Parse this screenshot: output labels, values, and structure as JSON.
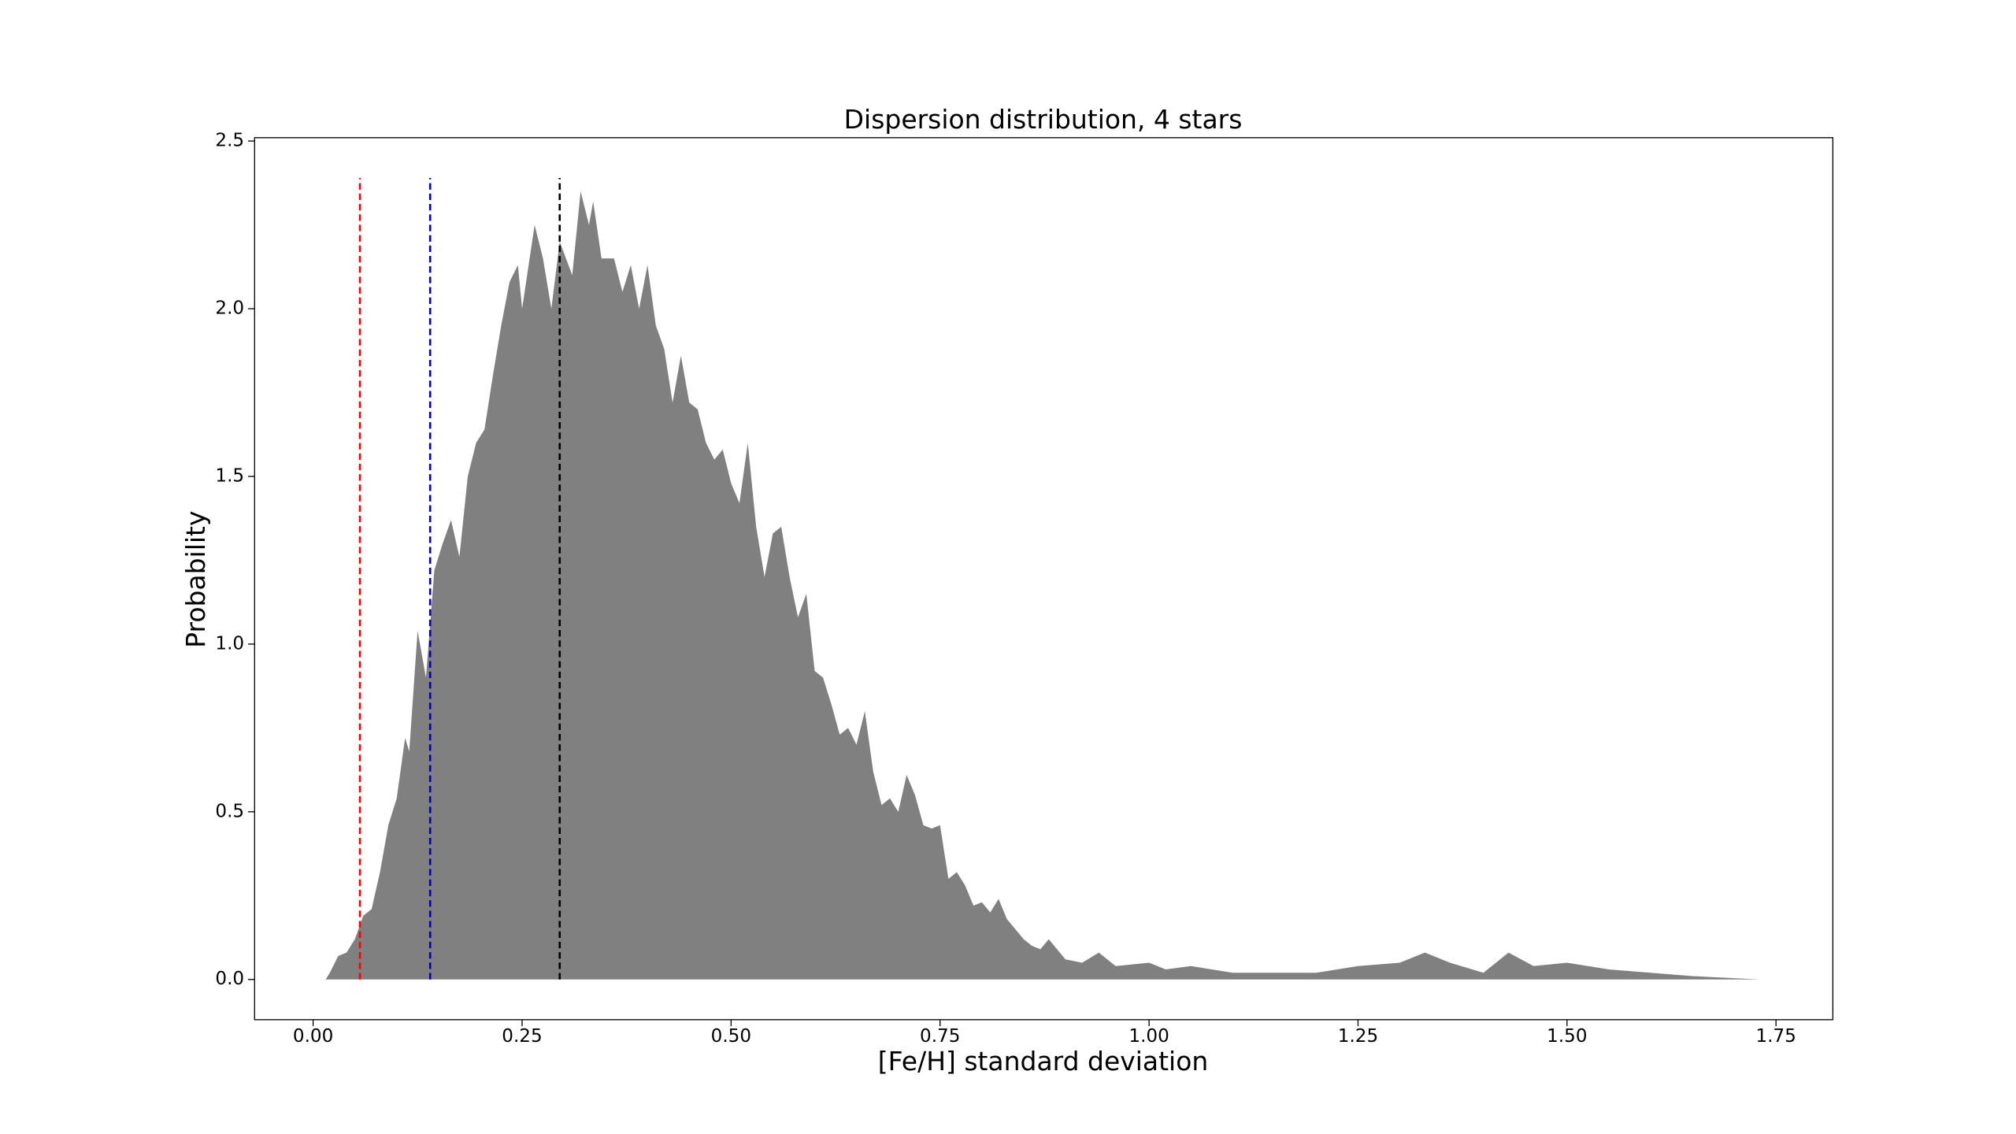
{
  "chart_data": {
    "type": "area",
    "title": "Dispersion distribution, 4 stars",
    "xlabel": "[Fe/H] standard deviation",
    "ylabel": "Probability",
    "color": "#808080",
    "x": [
      0.015,
      0.02,
      0.03,
      0.04,
      0.05,
      0.06,
      0.07,
      0.08,
      0.09,
      0.1,
      0.11,
      0.115,
      0.125,
      0.135,
      0.145,
      0.155,
      0.165,
      0.175,
      0.185,
      0.195,
      0.205,
      0.215,
      0.225,
      0.235,
      0.245,
      0.25,
      0.265,
      0.275,
      0.285,
      0.295,
      0.31,
      0.32,
      0.33,
      0.335,
      0.345,
      0.36,
      0.37,
      0.38,
      0.39,
      0.4,
      0.41,
      0.42,
      0.43,
      0.44,
      0.45,
      0.46,
      0.47,
      0.48,
      0.49,
      0.5,
      0.51,
      0.52,
      0.53,
      0.54,
      0.55,
      0.56,
      0.57,
      0.58,
      0.59,
      0.6,
      0.61,
      0.62,
      0.63,
      0.64,
      0.65,
      0.66,
      0.67,
      0.68,
      0.69,
      0.7,
      0.71,
      0.72,
      0.73,
      0.74,
      0.75,
      0.76,
      0.77,
      0.78,
      0.79,
      0.8,
      0.81,
      0.82,
      0.83,
      0.84,
      0.85,
      0.86,
      0.87,
      0.88,
      0.9,
      0.92,
      0.94,
      0.96,
      1.0,
      1.02,
      1.05,
      1.1,
      1.15,
      1.2,
      1.25,
      1.3,
      1.33,
      1.36,
      1.4,
      1.43,
      1.46,
      1.5,
      1.55,
      1.6,
      1.65,
      1.73
    ],
    "values": [
      0,
      0.02,
      0.07,
      0.08,
      0.12,
      0.19,
      0.21,
      0.32,
      0.46,
      0.54,
      0.72,
      0.68,
      1.04,
      0.9,
      1.22,
      1.3,
      1.37,
      1.26,
      1.5,
      1.6,
      1.64,
      1.8,
      1.95,
      2.08,
      2.13,
      2.0,
      2.25,
      2.15,
      2.0,
      2.2,
      2.1,
      2.35,
      2.25,
      2.32,
      2.15,
      2.15,
      2.05,
      2.13,
      2.0,
      2.13,
      1.95,
      1.88,
      1.72,
      1.86,
      1.72,
      1.7,
      1.6,
      1.55,
      1.58,
      1.48,
      1.42,
      1.6,
      1.35,
      1.2,
      1.33,
      1.35,
      1.2,
      1.08,
      1.15,
      0.92,
      0.9,
      0.82,
      0.73,
      0.75,
      0.7,
      0.8,
      0.62,
      0.52,
      0.54,
      0.5,
      0.61,
      0.55,
      0.46,
      0.45,
      0.46,
      0.3,
      0.32,
      0.28,
      0.22,
      0.23,
      0.2,
      0.24,
      0.18,
      0.15,
      0.12,
      0.1,
      0.09,
      0.12,
      0.06,
      0.05,
      0.08,
      0.04,
      0.05,
      0.03,
      0.04,
      0.02,
      0.02,
      0.02,
      0.04,
      0.05,
      0.08,
      0.05,
      0.02,
      0.08,
      0.04,
      0.05,
      0.03,
      0.02,
      0.01,
      0
    ],
    "vlines": [
      {
        "x": 0.056,
        "color": "#ff0000"
      },
      {
        "x": 0.14,
        "color": "#0000cc"
      },
      {
        "x": 0.295,
        "color": "#000000"
      }
    ],
    "vline_top": 2.39,
    "xlim": [
      -0.07,
      1.818
    ],
    "ylim": [
      -0.12,
      2.51
    ],
    "xticks": [
      {
        "value": 0,
        "label": "0.00"
      },
      0.25,
      {
        "value": 0.5,
        "label": "0.50"
      },
      0.75,
      {
        "value": 1,
        "label": "1.00"
      },
      1.25,
      {
        "value": 1.5,
        "label": "1.50"
      },
      1.75
    ],
    "yticks": [
      {
        "value": 0,
        "label": "0.0"
      },
      0.5,
      {
        "value": 1,
        "label": "1.0"
      },
      1.5,
      {
        "value": 2,
        "label": "2.0"
      },
      2.5
    ]
  }
}
